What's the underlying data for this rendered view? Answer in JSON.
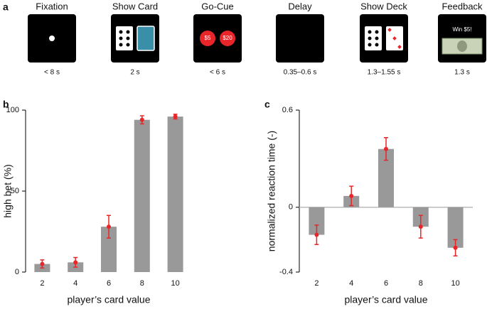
{
  "panel_a": {
    "label": "a",
    "stages": [
      {
        "title": "Fixation",
        "duration": "< 8 s"
      },
      {
        "title": "Show Card",
        "duration": "2 s"
      },
      {
        "title": "Go-Cue",
        "duration": "< 6 s",
        "texts": [
          "$5",
          "$20"
        ]
      },
      {
        "title": "Delay",
        "duration": "0.35–0.6 s"
      },
      {
        "title": "Show Deck",
        "duration": "1.3–1.55 s"
      },
      {
        "title": "Feedback",
        "duration": "1.3 s",
        "texts": [
          "Win $5!"
        ]
      }
    ]
  },
  "chart_data": [
    {
      "type": "bar",
      "label": "b",
      "xlabel": "player’s card value",
      "ylabel": "high bet (%)",
      "categories": [
        "2",
        "4",
        "6",
        "8",
        "10"
      ],
      "values": [
        5,
        6,
        28,
        94,
        96
      ],
      "errors": [
        2.5,
        3,
        7,
        2.5,
        1.5
      ],
      "color": "#999999",
      "error_color": "#e8262a",
      "ylim": [
        0,
        100
      ],
      "yticks": [
        0,
        50,
        100
      ]
    },
    {
      "type": "bar",
      "label": "c",
      "xlabel": "player’s card value",
      "ylabel": "normalized reaction time (-)",
      "categories": [
        "2",
        "4",
        "6",
        "8",
        "10"
      ],
      "values": [
        -0.17,
        0.07,
        0.36,
        -0.12,
        -0.25
      ],
      "errors": [
        0.06,
        0.06,
        0.07,
        0.07,
        0.05
      ],
      "color": "#999999",
      "error_color": "#e8262a",
      "ylim": [
        -0.4,
        0.6
      ],
      "yticks": [
        -0.4,
        0,
        0.6
      ]
    }
  ]
}
